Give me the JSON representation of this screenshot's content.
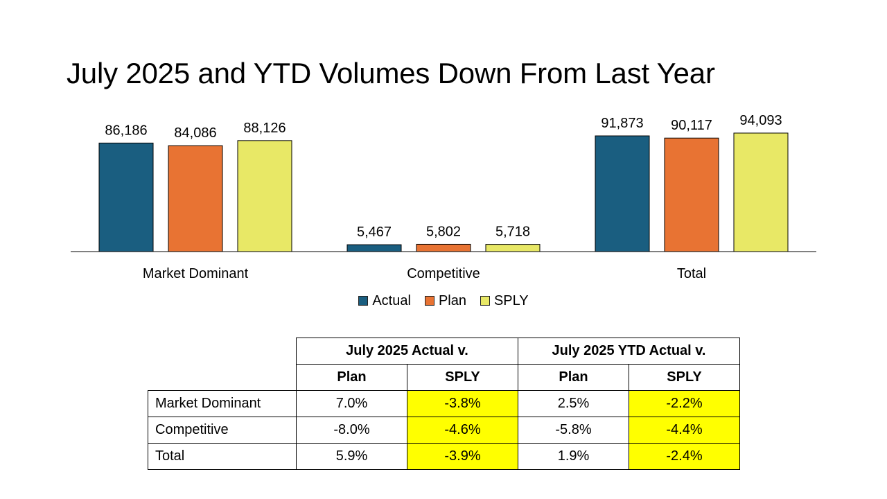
{
  "title": "July 2025 and YTD Volumes Down From Last Year",
  "chart_data": {
    "type": "bar",
    "categories": [
      "Market Dominant",
      "Competitive",
      "Total"
    ],
    "series": [
      {
        "name": "Actual",
        "color": "#1a5e80",
        "values": [
          86186,
          5467,
          91873
        ],
        "labels": [
          "86,186",
          "5,467",
          "91,873"
        ]
      },
      {
        "name": "Plan",
        "color": "#e87333",
        "values": [
          84086,
          5802,
          90117
        ],
        "labels": [
          "84,086",
          "5,802",
          "90,117"
        ]
      },
      {
        "name": "SPLY",
        "color": "#e8e866",
        "values": [
          88126,
          5718,
          94093
        ],
        "labels": [
          "88,126",
          "5,718",
          "94,093"
        ]
      }
    ],
    "ylim": [
      0,
      94093
    ],
    "legend_position": "bottom",
    "grid": false
  },
  "table": {
    "group_headers": [
      "July 2025 Actual v.",
      "July 2025 YTD Actual v."
    ],
    "sub_headers": [
      "Plan",
      "SPLY",
      "Plan",
      "SPLY"
    ],
    "rows": [
      {
        "label": "Market Dominant",
        "cells": [
          "7.0%",
          "-3.8%",
          "2.5%",
          "-2.2%"
        ]
      },
      {
        "label": "Competitive",
        "cells": [
          "-8.0%",
          "-4.6%",
          "-5.8%",
          "-4.4%"
        ]
      },
      {
        "label": "Total",
        "cells": [
          "5.9%",
          "-3.9%",
          "1.9%",
          "-2.4%"
        ]
      }
    ],
    "highlight_color": "#ffff00"
  }
}
